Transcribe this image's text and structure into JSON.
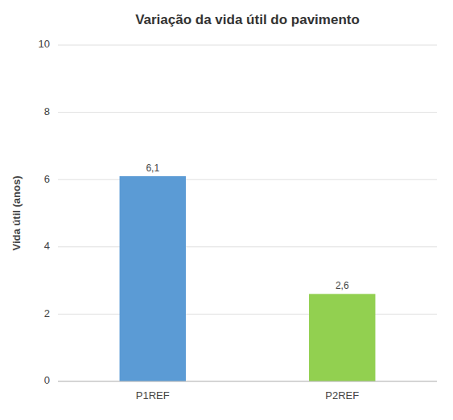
{
  "chart_data": {
    "type": "bar",
    "title": "Variação da vida útil do pavimento",
    "categories": [
      "P1REF",
      "P2REF"
    ],
    "values": [
      6.1,
      2.6
    ],
    "value_labels": [
      "6,1",
      "2,6"
    ],
    "colors": [
      "#5B9BD5",
      "#92D050"
    ],
    "ylabel": "Vida útil (anos)",
    "ylim": [
      0,
      10
    ],
    "yticks": [
      0,
      2,
      4,
      6,
      8,
      10
    ],
    "grid": true,
    "data_labels": true
  }
}
